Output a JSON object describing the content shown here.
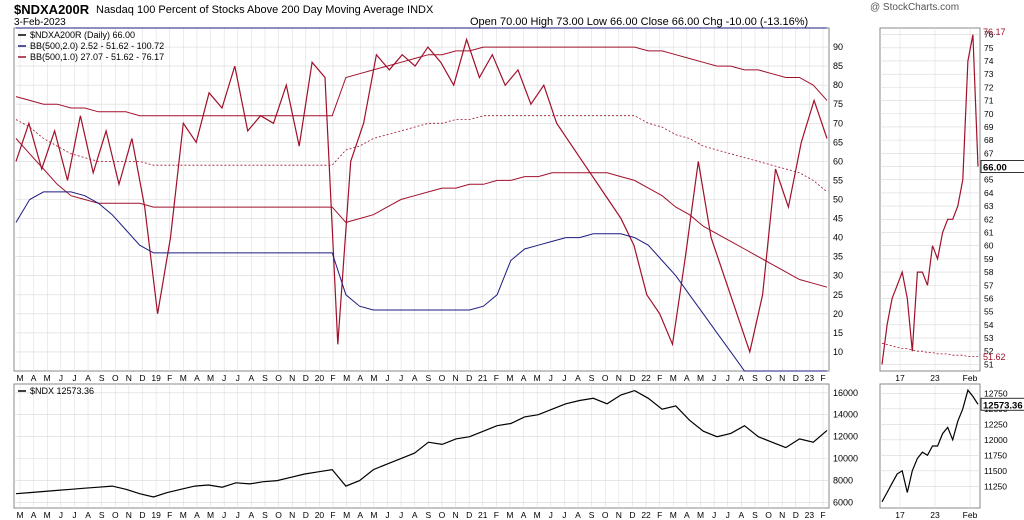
{
  "header": {
    "symbol": "$NDXA200R",
    "description": "Nasdaq 100 Percent of Stocks Above 200 Day Moving Average INDX",
    "date": "3-Feb-2023",
    "ohlc": "Open 70.00  High 73.00  Low 66.00  Close 66.00  Chg -10.00 (-13.16%)",
    "logo": "@ StockCharts.com"
  },
  "colors": {
    "main": "#a0102a",
    "band": "#a0102a",
    "outer": "#1c1c80",
    "ndx": "#000000",
    "grid": "#d8d8d8"
  },
  "chart_data": [
    {
      "type": "line",
      "legend": [
        "$NDXA200R (Daily) 66.00",
        "BB(500,2.0) 2.52 - 51.62 - 100.72",
        "BB(500,1.0) 27.07 - 51.62 - 76.17"
      ],
      "ylim": [
        5,
        95
      ],
      "yticks": [
        "10",
        "15",
        "20",
        "25",
        "30",
        "35",
        "40",
        "45",
        "50",
        "55",
        "60",
        "65",
        "70",
        "75",
        "80",
        "85",
        "90"
      ],
      "xticks": [
        "M",
        "A",
        "M",
        "J",
        "J",
        "A",
        "S",
        "O",
        "N",
        "D",
        "19",
        "F",
        "M",
        "A",
        "M",
        "J",
        "J",
        "A",
        "S",
        "O",
        "N",
        "D",
        "20",
        "F",
        "M",
        "A",
        "M",
        "J",
        "J",
        "A",
        "S",
        "O",
        "N",
        "D",
        "21",
        "F",
        "M",
        "A",
        "M",
        "J",
        "J",
        "A",
        "S",
        "O",
        "N",
        "D",
        "22",
        "F",
        "M",
        "A",
        "M",
        "J",
        "J",
        "A",
        "S",
        "O",
        "N",
        "D",
        "23",
        "F"
      ],
      "series": [
        {
          "name": "$NDXA200R",
          "values": [
            60,
            70,
            58,
            68,
            55,
            72,
            57,
            68,
            54,
            66,
            48,
            20,
            40,
            70,
            65,
            78,
            74,
            85,
            68,
            72,
            70,
            80,
            64,
            86,
            82,
            12,
            60,
            70,
            88,
            84,
            88,
            85,
            90,
            86,
            80,
            92,
            82,
            88,
            80,
            84,
            75,
            80,
            70,
            65,
            60,
            55,
            50,
            45,
            38,
            25,
            20,
            12,
            35,
            60,
            40,
            30,
            20,
            10,
            25,
            58,
            48,
            65,
            76,
            66
          ]
        },
        {
          "name": "BB upper 1.0",
          "values": [
            77,
            76,
            75,
            75,
            74,
            74,
            73,
            73,
            73,
            72,
            72,
            72,
            72,
            72,
            72,
            72,
            72,
            72,
            72,
            72,
            72,
            72,
            72,
            72,
            82,
            83,
            84,
            85,
            86,
            87,
            88,
            88,
            89,
            89,
            90,
            90,
            90,
            90,
            90,
            90,
            90,
            90,
            90,
            90,
            90,
            90,
            89,
            89,
            88,
            87,
            86,
            85,
            85,
            84,
            84,
            83,
            82,
            82,
            80,
            76
          ]
        },
        {
          "name": "BB middle",
          "values": [
            71,
            69,
            66,
            64,
            62,
            61,
            60,
            60,
            60,
            60,
            59,
            59,
            59,
            59,
            59,
            59,
            59,
            59,
            59,
            59,
            59,
            59,
            59,
            59,
            63,
            64,
            66,
            67,
            68,
            69,
            70,
            70,
            71,
            71,
            72,
            72,
            72,
            72,
            72,
            72,
            72,
            72,
            72,
            72,
            72,
            72,
            70,
            69,
            67,
            66,
            64,
            63,
            62,
            61,
            60,
            59,
            58,
            57,
            55,
            52
          ]
        },
        {
          "name": "BB lower 1.0",
          "values": [
            66,
            62,
            58,
            54,
            51,
            50,
            49,
            49,
            49,
            49,
            48,
            48,
            48,
            48,
            48,
            48,
            48,
            48,
            48,
            48,
            48,
            48,
            48,
            48,
            44,
            45,
            46,
            48,
            50,
            51,
            52,
            53,
            53,
            54,
            54,
            55,
            55,
            56,
            56,
            57,
            57,
            57,
            57,
            57,
            56,
            55,
            53,
            51,
            48,
            46,
            43,
            41,
            39,
            37,
            35,
            33,
            31,
            29,
            28,
            27
          ]
        },
        {
          "name": "BB lower 2.0",
          "values": [
            44,
            50,
            52,
            52,
            52,
            51,
            49,
            46,
            42,
            38,
            36,
            36,
            36,
            36,
            36,
            36,
            36,
            36,
            36,
            36,
            36,
            36,
            36,
            36,
            25,
            22,
            21,
            21,
            21,
            21,
            21,
            21,
            21,
            21,
            22,
            25,
            34,
            37,
            38,
            39,
            40,
            40,
            41,
            41,
            41,
            40,
            38,
            34,
            30,
            25,
            20,
            15,
            10,
            5,
            3,
            3,
            3,
            3,
            3,
            3
          ]
        },
        {
          "name": "BB upper 2.0",
          "values": [
            100,
            99,
            99,
            99,
            99,
            99,
            99,
            99,
            99,
            99,
            99,
            99,
            99,
            99,
            99,
            99,
            99,
            99,
            99,
            99,
            99,
            99,
            99,
            99,
            99,
            99,
            99,
            99,
            99,
            99,
            99,
            99,
            99,
            99,
            99,
            99,
            99,
            99,
            99,
            99,
            99,
            99,
            99,
            99,
            99,
            99,
            99,
            99,
            99,
            99,
            99,
            99,
            99,
            99,
            99,
            99,
            99,
            99,
            99,
            99
          ]
        }
      ]
    },
    {
      "type": "line",
      "legend": [
        "$NDX 12573.36"
      ],
      "ylim": [
        5500,
        16800
      ],
      "yticks": [
        "6000",
        "8000",
        "10000",
        "12000",
        "14000",
        "16000"
      ],
      "xticks": [
        "M",
        "A",
        "M",
        "J",
        "J",
        "A",
        "S",
        "O",
        "N",
        "D",
        "19",
        "F",
        "M",
        "A",
        "M",
        "J",
        "J",
        "A",
        "S",
        "O",
        "N",
        "D",
        "20",
        "F",
        "M",
        "A",
        "M",
        "J",
        "J",
        "A",
        "S",
        "O",
        "N",
        "D",
        "21",
        "F",
        "M",
        "A",
        "M",
        "J",
        "J",
        "A",
        "S",
        "O",
        "N",
        "D",
        "22",
        "F",
        "M",
        "A",
        "M",
        "J",
        "J",
        "A",
        "S",
        "O",
        "N",
        "D",
        "23",
        "F"
      ],
      "series": [
        {
          "name": "$NDX",
          "values": [
            6800,
            6900,
            7000,
            7100,
            7200,
            7300,
            7400,
            7500,
            7200,
            6800,
            6500,
            6900,
            7200,
            7500,
            7600,
            7400,
            7800,
            7700,
            7900,
            8000,
            8300,
            8600,
            8800,
            9000,
            7500,
            8000,
            9000,
            9500,
            10000,
            10500,
            11500,
            11300,
            11800,
            12000,
            12500,
            13000,
            13200,
            13800,
            14000,
            14500,
            15000,
            15300,
            15500,
            15000,
            15800,
            16200,
            15500,
            14500,
            14800,
            13500,
            12500,
            12000,
            12300,
            13000,
            12000,
            11500,
            11000,
            11800,
            11500,
            12573
          ]
        }
      ]
    },
    {
      "type": "line",
      "legend": [],
      "ylim": [
        50.5,
        76.5
      ],
      "yticks": [
        "51",
        "52",
        "53",
        "54",
        "55",
        "56",
        "57",
        "58",
        "59",
        "60",
        "61",
        "62",
        "63",
        "64",
        "65",
        "66",
        "67",
        "68",
        "69",
        "70",
        "71",
        "72",
        "73",
        "74",
        "75",
        "76"
      ],
      "xticks": [
        "17",
        "23",
        "Feb"
      ],
      "last_label": "66.00",
      "upper_label": "76.17",
      "lower_label": "51.62",
      "series": [
        {
          "name": "$NDXA200R",
          "values": [
            51,
            54,
            56,
            57,
            58,
            56,
            52,
            58,
            58,
            57,
            60,
            59,
            61,
            62,
            62,
            63,
            65,
            74,
            76,
            66
          ]
        },
        {
          "name": "BB middle",
          "values": [
            52.6,
            52.5,
            52.4,
            52.3,
            52.2,
            52.2,
            52.1,
            52.0,
            52.0,
            51.9,
            51.9,
            51.8,
            51.8,
            51.8,
            51.7,
            51.7,
            51.7,
            51.6,
            51.6,
            51.6
          ]
        }
      ]
    },
    {
      "type": "line",
      "legend": [],
      "ylim": [
        10900,
        12900
      ],
      "yticks": [
        "11250",
        "11500",
        "11750",
        "12000",
        "12250",
        "12500",
        "12750"
      ],
      "xticks": [
        "17",
        "23",
        "Feb"
      ],
      "last_label": "12573.36",
      "series": [
        {
          "name": "$NDX",
          "values": [
            11000,
            11150,
            11300,
            11450,
            11500,
            11150,
            11500,
            11700,
            11800,
            11750,
            11900,
            11900,
            12100,
            12200,
            12000,
            12300,
            12500,
            12800,
            12700,
            12573
          ]
        }
      ]
    }
  ]
}
